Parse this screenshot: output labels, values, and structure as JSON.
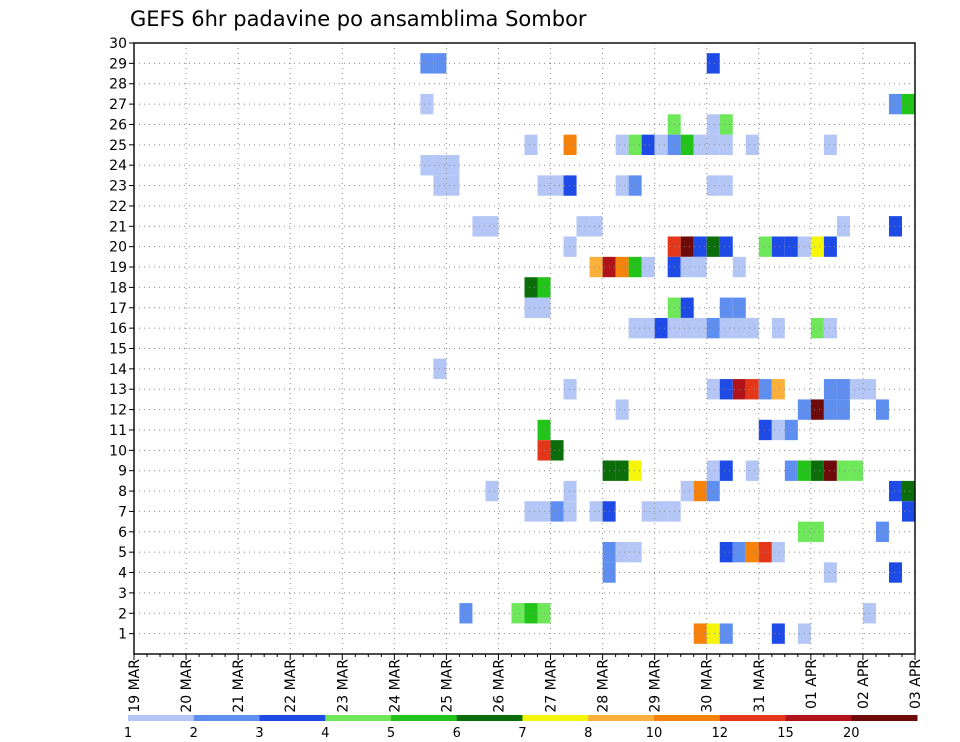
{
  "chart_data": {
    "type": "heatmap",
    "title": "GEFS 6hr padavine po ansamblima Sombor",
    "xlabel": "",
    "ylabel": "",
    "x_tick_labels": [
      "19 MAR",
      "20 MAR",
      "21 MAR",
      "22 MAR",
      "23 MAR",
      "24 MAR",
      "25 MAR",
      "26 MAR",
      "27 MAR",
      "28 MAR",
      "29 MAR",
      "30 MAR",
      "31 MAR",
      "01 APR",
      "02 APR",
      "03 APR"
    ],
    "y_tick_labels": [
      "1",
      "2",
      "3",
      "4",
      "5",
      "6",
      "7",
      "8",
      "9",
      "10",
      "11",
      "12",
      "13",
      "14",
      "15",
      "16",
      "17",
      "18",
      "19",
      "20",
      "21",
      "22",
      "23",
      "24",
      "25",
      "26",
      "27",
      "28",
      "29",
      "30"
    ],
    "y_range": [
      0,
      30
    ],
    "grid": "dotted",
    "steps_per_day": 4,
    "x_step_range": [
      0,
      60
    ],
    "legend": {
      "position": "bottom",
      "labels": [
        "1",
        "2",
        "3",
        "4",
        "5",
        "6",
        "7",
        "8",
        "10",
        "12",
        "15",
        "20"
      ],
      "colors": [
        "#b3c6f5",
        "#5e8ff0",
        "#1e4be6",
        "#6ee85a",
        "#22c41a",
        "#0b6e0b",
        "#f5f50a",
        "#fbb03b",
        "#f5820a",
        "#e4371a",
        "#b0141a",
        "#6e0a0a"
      ]
    },
    "cells": [
      [
        22,
        29,
        1
      ],
      [
        23,
        29,
        1
      ],
      [
        44,
        29,
        2
      ],
      [
        22,
        27,
        0
      ],
      [
        58,
        27,
        1
      ],
      [
        59,
        27,
        4
      ],
      [
        41,
        26,
        3
      ],
      [
        44,
        26,
        0
      ],
      [
        45,
        26,
        3
      ],
      [
        30,
        25,
        0
      ],
      [
        33,
        25,
        8
      ],
      [
        37,
        25,
        0
      ],
      [
        38,
        25,
        3
      ],
      [
        39,
        25,
        2
      ],
      [
        40,
        25,
        0
      ],
      [
        41,
        25,
        1
      ],
      [
        42,
        25,
        4
      ],
      [
        43,
        25,
        0
      ],
      [
        44,
        25,
        0
      ],
      [
        45,
        25,
        0
      ],
      [
        47,
        25,
        0
      ],
      [
        53,
        25,
        0
      ],
      [
        23,
        24,
        0
      ],
      [
        24,
        24,
        0
      ],
      [
        22,
        24,
        0
      ],
      [
        23,
        23,
        0
      ],
      [
        24,
        23,
        0
      ],
      [
        31,
        23,
        0
      ],
      [
        32,
        23,
        0
      ],
      [
        33,
        23,
        2
      ],
      [
        37,
        23,
        0
      ],
      [
        38,
        23,
        1
      ],
      [
        44,
        23,
        0
      ],
      [
        45,
        23,
        0
      ],
      [
        26,
        21,
        0
      ],
      [
        27,
        21,
        0
      ],
      [
        34,
        21,
        0
      ],
      [
        35,
        21,
        0
      ],
      [
        54,
        21,
        0
      ],
      [
        58,
        21,
        2
      ],
      [
        33,
        20,
        0
      ],
      [
        41,
        20,
        9
      ],
      [
        42,
        20,
        11
      ],
      [
        43,
        20,
        2
      ],
      [
        44,
        20,
        5
      ],
      [
        45,
        20,
        2
      ],
      [
        48,
        20,
        3
      ],
      [
        49,
        20,
        2
      ],
      [
        50,
        20,
        2
      ],
      [
        51,
        20,
        0
      ],
      [
        52,
        20,
        6
      ],
      [
        53,
        20,
        2
      ],
      [
        35,
        19,
        7
      ],
      [
        36,
        19,
        10
      ],
      [
        37,
        19,
        8
      ],
      [
        38,
        19,
        4
      ],
      [
        39,
        19,
        0
      ],
      [
        41,
        19,
        2
      ],
      [
        42,
        19,
        0
      ],
      [
        43,
        19,
        0
      ],
      [
        46,
        19,
        0
      ],
      [
        30,
        18,
        5
      ],
      [
        31,
        18,
        4
      ],
      [
        30,
        17,
        0
      ],
      [
        31,
        17,
        0
      ],
      [
        41,
        17,
        3
      ],
      [
        42,
        17,
        2
      ],
      [
        45,
        17,
        1
      ],
      [
        46,
        17,
        1
      ],
      [
        38,
        16,
        0
      ],
      [
        39,
        16,
        0
      ],
      [
        40,
        16,
        2
      ],
      [
        41,
        16,
        0
      ],
      [
        42,
        16,
        0
      ],
      [
        43,
        16,
        0
      ],
      [
        44,
        16,
        1
      ],
      [
        45,
        16,
        0
      ],
      [
        46,
        16,
        0
      ],
      [
        47,
        16,
        0
      ],
      [
        49,
        16,
        0
      ],
      [
        52,
        16,
        3
      ],
      [
        53,
        16,
        0
      ],
      [
        23,
        14,
        0
      ],
      [
        33,
        13,
        0
      ],
      [
        44,
        13,
        0
      ],
      [
        45,
        13,
        2
      ],
      [
        46,
        13,
        10
      ],
      [
        47,
        13,
        9
      ],
      [
        48,
        13,
        1
      ],
      [
        49,
        13,
        7
      ],
      [
        53,
        13,
        1
      ],
      [
        54,
        13,
        1
      ],
      [
        55,
        13,
        0
      ],
      [
        56,
        13,
        0
      ],
      [
        37,
        12,
        0
      ],
      [
        51,
        12,
        1
      ],
      [
        52,
        12,
        11
      ],
      [
        53,
        12,
        1
      ],
      [
        54,
        12,
        1
      ],
      [
        57,
        12,
        1
      ],
      [
        31,
        11,
        4
      ],
      [
        48,
        11,
        2
      ],
      [
        49,
        11,
        0
      ],
      [
        50,
        11,
        1
      ],
      [
        31,
        10,
        9
      ],
      [
        32,
        10,
        5
      ],
      [
        36,
        9,
        5
      ],
      [
        37,
        9,
        5
      ],
      [
        38,
        9,
        6
      ],
      [
        44,
        9,
        0
      ],
      [
        45,
        9,
        2
      ],
      [
        47,
        9,
        0
      ],
      [
        50,
        9,
        1
      ],
      [
        51,
        9,
        4
      ],
      [
        52,
        9,
        5
      ],
      [
        53,
        9,
        11
      ],
      [
        54,
        9,
        3
      ],
      [
        55,
        9,
        3
      ],
      [
        27,
        8,
        0
      ],
      [
        33,
        8,
        0
      ],
      [
        42,
        8,
        0
      ],
      [
        43,
        8,
        8
      ],
      [
        44,
        8,
        1
      ],
      [
        58,
        8,
        2
      ],
      [
        59,
        8,
        5
      ],
      [
        30,
        7,
        0
      ],
      [
        31,
        7,
        0
      ],
      [
        32,
        7,
        1
      ],
      [
        33,
        7,
        0
      ],
      [
        35,
        7,
        0
      ],
      [
        36,
        7,
        2
      ],
      [
        39,
        7,
        0
      ],
      [
        40,
        7,
        0
      ],
      [
        41,
        7,
        0
      ],
      [
        59,
        7,
        2
      ],
      [
        51,
        6,
        3
      ],
      [
        52,
        6,
        3
      ],
      [
        57,
        6,
        1
      ],
      [
        36,
        5,
        1
      ],
      [
        37,
        5,
        0
      ],
      [
        38,
        5,
        0
      ],
      [
        45,
        5,
        2
      ],
      [
        46,
        5,
        1
      ],
      [
        47,
        5,
        8
      ],
      [
        48,
        5,
        9
      ],
      [
        49,
        5,
        0
      ],
      [
        36,
        4,
        1
      ],
      [
        53,
        4,
        0
      ],
      [
        58,
        4,
        2
      ],
      [
        25,
        2,
        1
      ],
      [
        29,
        2,
        3
      ],
      [
        30,
        2,
        4
      ],
      [
        31,
        2,
        3
      ],
      [
        56,
        2,
        0
      ],
      [
        43,
        1,
        8
      ],
      [
        44,
        1,
        6
      ],
      [
        45,
        1,
        1
      ],
      [
        49,
        1,
        2
      ],
      [
        51,
        1,
        0
      ]
    ]
  }
}
